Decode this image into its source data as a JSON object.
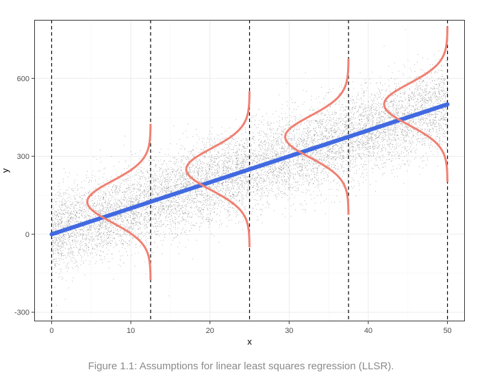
{
  "caption": "Figure 1.1: Assumptions for linear least squares regression (LLSR).",
  "chart_data": {
    "type": "scatter",
    "title": "",
    "xlabel": "x",
    "ylabel": "y",
    "xlim": [
      -2.2,
      52.2
    ],
    "ylim": [
      -335,
      825
    ],
    "x_ticks": [
      0,
      10,
      20,
      30,
      40,
      50
    ],
    "x_tick_labels": [
      "0",
      "10",
      "20",
      "30",
      "40",
      "50"
    ],
    "y_ticks": [
      -300,
      0,
      300,
      600
    ],
    "y_tick_labels": [
      "-300",
      "0",
      "300",
      "600"
    ],
    "grid": true,
    "theme": "bw",
    "scatter_points": {
      "description_count": 10000,
      "x_range": [
        0,
        50
      ],
      "color": "#000000",
      "opacity": 0.45
    },
    "regression_line": {
      "intercept": 0,
      "slope": 10,
      "x_range": [
        0,
        50
      ],
      "color": "#4169e1"
    },
    "vertical_lines": [
      0,
      12.5,
      25,
      37.5,
      50
    ],
    "vertical_line_style": "dashed",
    "normal_curves": {
      "color": "#f08072",
      "at_x": [
        12.5,
        25,
        37.5,
        50
      ],
      "means": [
        125,
        250,
        375,
        500
      ],
      "sd": 80,
      "y_halfwidth": 300,
      "peak_width_x": 8
    }
  },
  "colors": {
    "panel_border": "#333333",
    "grid_major": "#ebebeb",
    "grid_minor": "#f5f5f5",
    "regression": "#4169e1",
    "normal_curve": "#f08072",
    "points": "#000000"
  }
}
